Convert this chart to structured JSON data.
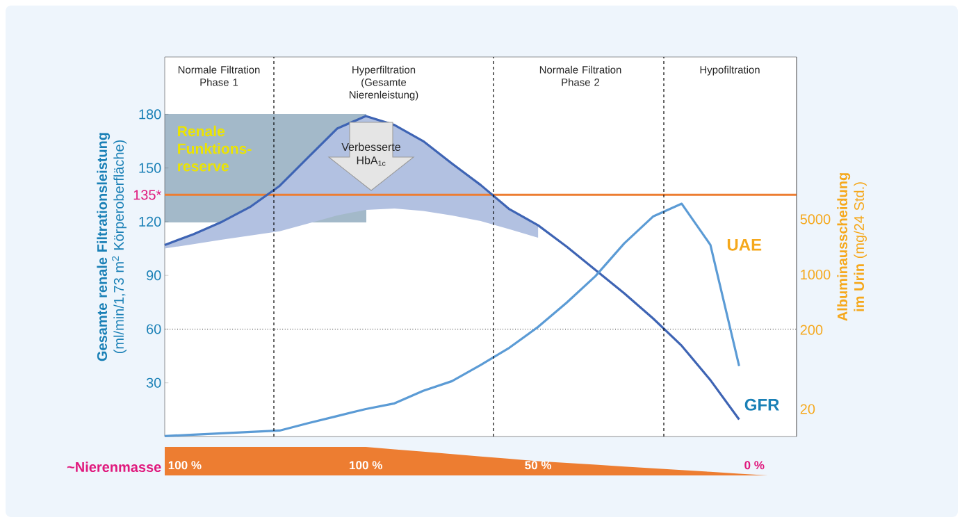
{
  "chart_data": [
    {
      "type": "line",
      "categories": [
        null,
        null,
        null,
        null,
        null,
        null,
        null,
        null,
        null,
        null,
        null,
        null,
        null,
        null,
        null,
        null,
        null,
        null,
        null,
        null,
        null,
        null,
        null
      ],
      "series": [
        {
          "name": "GFR",
          "color": "#3e64b4",
          "values": [
            107,
            113,
            120,
            128.5,
            140,
            156,
            172,
            179,
            174,
            165,
            152.5,
            140.5,
            127,
            118,
            106,
            93,
            80,
            66,
            50.7,
            31.5,
            9.5,
            null,
            null
          ],
          "upper": [
            107,
            113,
            120,
            128.5,
            140,
            156,
            172,
            179,
            174,
            165,
            152.5,
            140.5,
            127,
            118,
            null,
            null,
            null,
            null,
            null,
            null,
            null,
            null,
            null
          ],
          "lower": [
            105,
            107.5,
            110,
            112.3,
            114.6,
            119,
            123.5,
            126.6,
            127.4,
            126,
            123.5,
            120.4,
            115.8,
            111,
            null,
            null,
            null,
            null,
            null,
            null,
            null,
            null,
            null
          ]
        },
        {
          "name": "UAE",
          "color": "#5b9bd5",
          "axis": "y2",
          "values": [
            9.1,
            9.5,
            9.9,
            10.3,
            10.7,
            13.3,
            16.3,
            20,
            23.6,
            34,
            45,
            72,
            119,
            218,
            443,
            957,
            2480,
            5400,
            7850,
            2370,
            70,
            null,
            null
          ]
        }
      ],
      "ylim": [
        0,
        212
      ],
      "yticks": [
        30,
        60,
        90,
        120,
        150,
        180
      ],
      "y2lim": [
        9,
        560000
      ],
      "y2ticks": [
        20,
        200,
        1000,
        5000
      ],
      "log": "y2",
      "ylabel": "**Gesamte renale Filtrationsleistung** (ml/min/1,73 m$^{2}$ Körperoberfläche)",
      "y2label": "**Albuminausscheidung im Urin** (mg/24 Std.)",
      "ref_lines": [
        {
          "axis": "y",
          "value": 135,
          "label": "135*",
          "color": "#ed7d31",
          "line_style": "solid"
        },
        {
          "axis": "y",
          "value": 60,
          "color": "#000000",
          "line_style": "dotted"
        }
      ],
      "annotations": [
        "Renale Funktions-reserve",
        "Verbesserte HbA$_{1c}$",
        "Normale Filtration Phase 1",
        "Hyperfiltration (Gesamte Nierenleistung)",
        "Normale Filtration Phase 2",
        "Hypofiltration"
      ],
      "legend": false
    },
    {
      "type": "area",
      "ylabel": "~Nierenmasse",
      "categories": [
        null,
        null,
        null,
        null,
        null,
        null,
        null,
        null,
        null,
        null,
        null,
        null,
        null,
        null,
        null,
        null,
        null,
        null,
        null,
        null,
        null,
        null,
        null
      ],
      "values": [
        100,
        100,
        100,
        100,
        100,
        100,
        100,
        100,
        91.7,
        83.3,
        75,
        66.7,
        58.3,
        50,
        43.8,
        37.5,
        31.3,
        25,
        18.8,
        12.5,
        6.3,
        0,
        null
      ],
      "value_labels": [
        "100 %",
        null,
        null,
        null,
        null,
        null,
        null,
        "100 %",
        null,
        null,
        null,
        null,
        null,
        "50 %",
        null,
        null,
        null,
        null,
        null,
        null,
        null,
        "0 %",
        null
      ],
      "color": "#ed7d31",
      "tick_labels": false
    }
  ]
}
